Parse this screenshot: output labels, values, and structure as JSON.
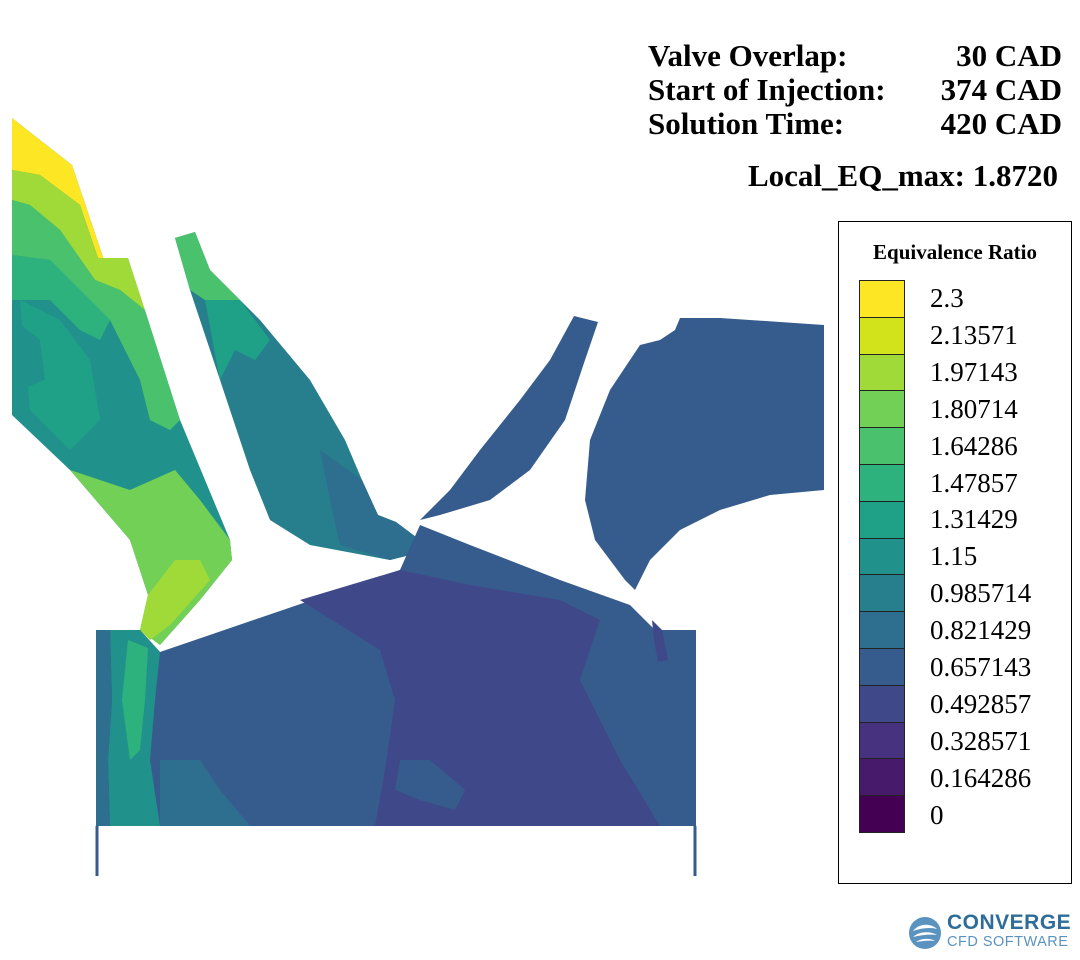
{
  "annotations": {
    "rows": [
      {
        "label": "Valve Overlap:",
        "value": "30 CAD"
      },
      {
        "label": "Start of Injection:",
        "value": "374 CAD"
      },
      {
        "label": "Solution Time:",
        "value": "420 CAD"
      }
    ],
    "local_eq_max": "Local_EQ_max: 1.8720"
  },
  "legend": {
    "title": "Equivalence Ratio",
    "levels": [
      {
        "label": "2.3",
        "color": "#fde725"
      },
      {
        "label": "2.13571",
        "color": "#d2e21b"
      },
      {
        "label": "1.97143",
        "color": "#a0da39"
      },
      {
        "label": "1.80714",
        "color": "#73d056"
      },
      {
        "label": "1.64286",
        "color": "#4ac16d"
      },
      {
        "label": "1.47857",
        "color": "#2db27d"
      },
      {
        "label": "1.31429",
        "color": "#1fa187"
      },
      {
        "label": "1.15",
        "color": "#21918c"
      },
      {
        "label": "0.985714",
        "color": "#277f8e"
      },
      {
        "label": "0.821429",
        "color": "#2e6e8e"
      },
      {
        "label": "0.657143",
        "color": "#365c8d"
      },
      {
        "label": "0.492857",
        "color": "#3f4889"
      },
      {
        "label": "0.328571",
        "color": "#46327e"
      },
      {
        "label": "0.164286",
        "color": "#481a6c"
      },
      {
        "label": "0",
        "color": "#440154"
      }
    ]
  },
  "logo": {
    "line1": "CONVERGE",
    "line2": "CFD SOFTWARE"
  },
  "colors": {
    "cylinder_low": "#3f4889",
    "cylinder_mid": "#365c8d",
    "exhaust": "#365c8d",
    "intake_high": "#fde725",
    "intake_green": "#73d056",
    "intake_teal": "#1fa187"
  }
}
